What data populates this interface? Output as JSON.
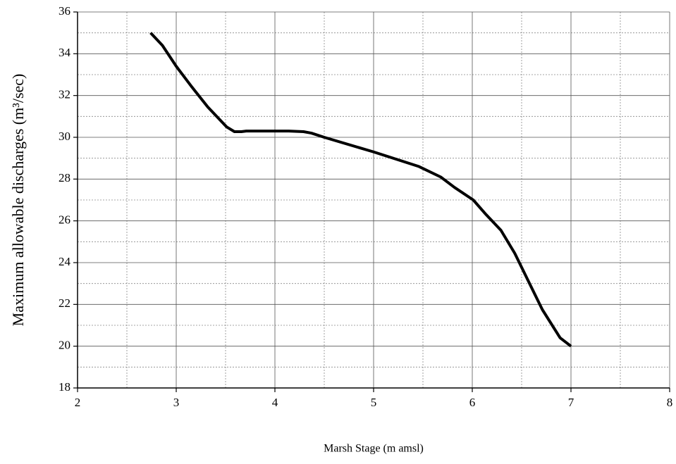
{
  "chart_data": {
    "type": "line",
    "xlabel": "Marsh Stage (m amsl)",
    "ylabel": "Maximum allowable discharges (m³/sec)",
    "x": [
      2.74,
      2.86,
      3.0,
      3.16,
      3.32,
      3.45,
      3.51,
      3.59,
      3.66,
      3.71,
      4.14,
      4.29,
      4.37,
      4.5,
      5.0,
      5.46,
      5.68,
      5.82,
      6.01,
      6.14,
      6.29,
      6.43,
      6.57,
      6.71,
      6.89,
      7.0
    ],
    "values": [
      35.0,
      34.4,
      33.4,
      32.4,
      31.45,
      30.8,
      30.5,
      30.27,
      30.27,
      30.3,
      30.3,
      30.27,
      30.2,
      30.0,
      29.3,
      28.6,
      28.1,
      27.6,
      27.0,
      26.3,
      25.55,
      24.45,
      23.1,
      21.75,
      20.4,
      20.0
    ],
    "color": "#000000",
    "xlim": [
      2,
      8
    ],
    "xticks": [
      2,
      3,
      4,
      5,
      6,
      7,
      8
    ],
    "ylim": [
      18,
      36
    ],
    "yticks": [
      18,
      20,
      22,
      24,
      26,
      28,
      30,
      32,
      34,
      36
    ],
    "x_minor_grid": [
      2.5,
      3.5,
      4.5,
      5.5,
      6.5,
      7.5
    ],
    "y_minor_grid": [
      19,
      21,
      23,
      25,
      27,
      29,
      31,
      33,
      35
    ],
    "grid": true
  }
}
